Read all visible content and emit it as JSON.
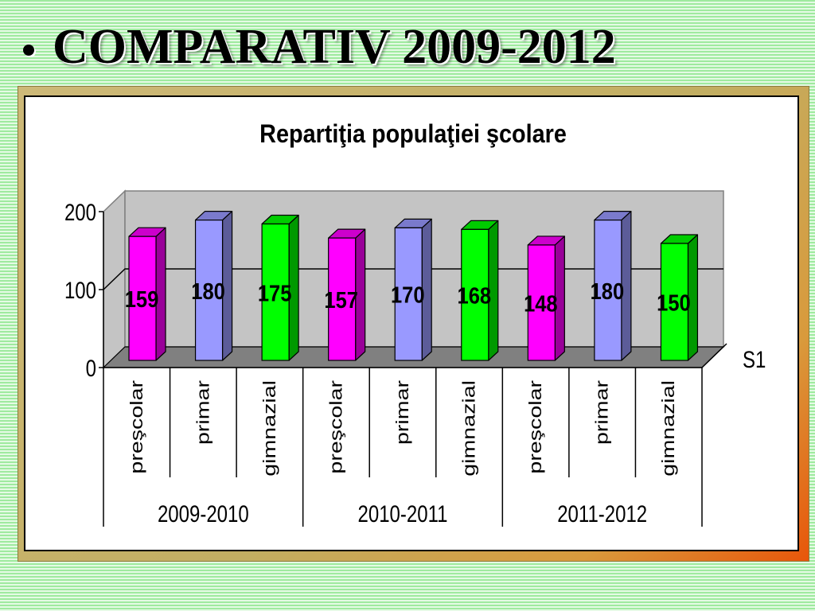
{
  "slide": {
    "title": "COMPARATIV 2009-2012"
  },
  "chart_data": {
    "type": "bar",
    "title": "Repartiţia populaţiei şcolare",
    "categories": [
      "preşcolar",
      "primar",
      "gimnazial",
      "preşcolar",
      "primar",
      "gimnazial",
      "preşcolar",
      "primar",
      "gimnazial"
    ],
    "category_groups": [
      "2009-2010",
      "2010-2011",
      "2011-2012"
    ],
    "series": [
      {
        "name": "S1",
        "values": [
          159,
          180,
          175,
          157,
          170,
          168,
          148,
          180,
          150
        ]
      }
    ],
    "bar_colors": [
      "#FF00FF",
      "#9999FF",
      "#00FF00",
      "#FF00FF",
      "#9999FF",
      "#00FF00",
      "#FF00FF",
      "#9999FF",
      "#00FF00"
    ],
    "ylim": [
      0,
      200
    ],
    "yticks": [
      0,
      100,
      200
    ],
    "grid": true,
    "data_labels": true,
    "three_d": true
  }
}
